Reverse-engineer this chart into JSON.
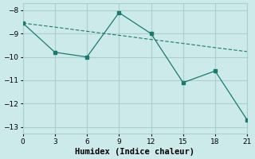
{
  "xlabel": "Humidex (Indice chaleur)",
  "bg_color": "#cceaea",
  "grid_color": "#aacfcf",
  "line_color": "#1a7a6e",
  "x_trend": [
    0,
    3,
    6,
    9,
    12,
    15,
    18,
    21
  ],
  "y_trend": [
    -8.55,
    -8.72,
    -8.9,
    -9.07,
    -9.25,
    -9.42,
    -9.6,
    -9.77
  ],
  "x_main": [
    0,
    3,
    6,
    9,
    12,
    15,
    18,
    21
  ],
  "y_main": [
    -8.55,
    -9.8,
    -10.0,
    -8.1,
    -9.0,
    -11.1,
    -10.6,
    -12.7
  ],
  "xlim": [
    0,
    21
  ],
  "ylim": [
    -13.3,
    -7.7
  ],
  "xticks": [
    0,
    3,
    6,
    9,
    12,
    15,
    18,
    21
  ],
  "yticks": [
    -8,
    -9,
    -10,
    -11,
    -12,
    -13
  ],
  "tick_fontsize": 6.5,
  "label_fontsize": 7.5
}
